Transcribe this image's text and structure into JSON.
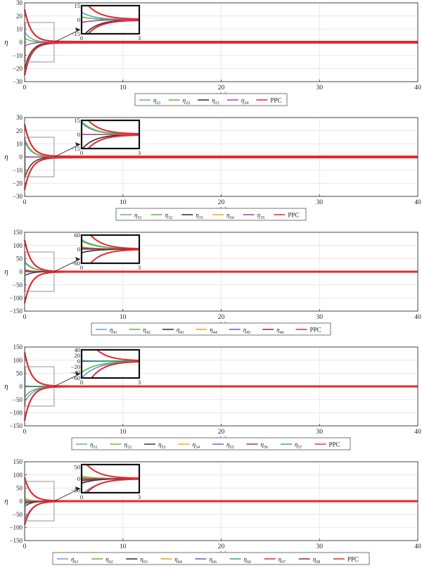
{
  "chart_data": [
    {
      "type": "line",
      "xlabel": "t (s)",
      "ylabel": "η",
      "xlim": [
        0,
        40
      ],
      "ylim": [
        -30,
        30
      ],
      "xticks": [
        "0",
        "10",
        "20",
        "30",
        "40"
      ],
      "yticks": [
        "30",
        "20",
        "10",
        "0",
        "−10",
        "−20",
        "−30"
      ],
      "grid": true,
      "inset": {
        "xticks": [
          "0",
          "3"
        ],
        "yticks": [
          "15",
          "0",
          "−15"
        ],
        "ylim": [
          -15,
          15
        ]
      },
      "ppc_bound": {
        "rho0": 25,
        "rho_inf": 0.5,
        "decay": 1.5
      },
      "legend": [
        {
          "label": "η",
          "sub": "21",
          "color": "#5b9bd5"
        },
        {
          "label": "η",
          "sub": "22",
          "color": "#5fb83a"
        },
        {
          "label": "η",
          "sub": "23",
          "color": "#2b2b2b"
        },
        {
          "label": "η",
          "sub": "24",
          "color": "#a04aa6"
        },
        {
          "label": "PPC",
          "sub": "",
          "color": "#e8282b"
        }
      ],
      "series": [
        {
          "sub": "21",
          "color": "#5b9bd5",
          "y0": 8,
          "decay": 1.5
        },
        {
          "sub": "22",
          "color": "#5fb83a",
          "y0": 3,
          "decay": 1.5
        },
        {
          "sub": "23",
          "color": "#2b2b2b",
          "y0": -20,
          "decay": 1.5
        },
        {
          "sub": "24",
          "color": "#a04aa6",
          "y0": -3,
          "decay": 1.5
        }
      ]
    },
    {
      "type": "line",
      "xlabel": "t (s)",
      "ylabel": "η",
      "xlim": [
        0,
        40
      ],
      "ylim": [
        -30,
        30
      ],
      "xticks": [
        "0",
        "10",
        "20",
        "30",
        "40"
      ],
      "yticks": [
        "30",
        "20",
        "10",
        "0",
        "−10",
        "−20",
        "−30"
      ],
      "grid": true,
      "inset": {
        "xticks": [
          "0",
          "3"
        ],
        "yticks": [
          "15",
          "0",
          "−15"
        ],
        "ylim": [
          -15,
          15
        ]
      },
      "ppc_bound": {
        "rho0": 25,
        "rho_inf": 0.5,
        "decay": 1.5
      },
      "legend": [
        {
          "label": "η",
          "sub": "31",
          "color": "#5b9bd5"
        },
        {
          "label": "η",
          "sub": "32",
          "color": "#5fb83a"
        },
        {
          "label": "η",
          "sub": "33",
          "color": "#2b2b2b"
        },
        {
          "label": "η",
          "sub": "34",
          "color": "#e8a317"
        },
        {
          "label": "η",
          "sub": "35",
          "color": "#a04aa6"
        },
        {
          "label": "PPC",
          "sub": "",
          "color": "#e8282b"
        }
      ],
      "series": [
        {
          "sub": "31",
          "color": "#5b9bd5",
          "y0": 12,
          "decay": 1.5
        },
        {
          "sub": "32",
          "color": "#5fb83a",
          "y0": 14,
          "decay": 1.5
        },
        {
          "sub": "33",
          "color": "#2b2b2b",
          "y0": -16,
          "decay": 1.5
        },
        {
          "sub": "34",
          "color": "#e8a317",
          "y0": 0,
          "decay": 1.5
        },
        {
          "sub": "35",
          "color": "#a04aa6",
          "y0": 0,
          "decay": 1.5
        }
      ]
    },
    {
      "type": "line",
      "xlabel": "t (s)",
      "ylabel": "η",
      "xlim": [
        0,
        40
      ],
      "ylim": [
        -150,
        150
      ],
      "xticks": [
        "0",
        "10",
        "20",
        "30",
        "40"
      ],
      "yticks": [
        "150",
        "100",
        "50",
        "0",
        "−50",
        "−100",
        "−150"
      ],
      "grid": true,
      "inset": {
        "xticks": [
          "0",
          "3"
        ],
        "yticks": [
          "60",
          "0",
          "−60"
        ],
        "ylim": [
          -60,
          60
        ]
      },
      "ppc_bound": {
        "rho0": 120,
        "rho_inf": 1,
        "decay": 1.5
      },
      "legend": [
        {
          "label": "η",
          "sub": "41",
          "color": "#5b9bd5"
        },
        {
          "label": "η",
          "sub": "42",
          "color": "#5fb83a"
        },
        {
          "label": "η",
          "sub": "43",
          "color": "#2b2b2b"
        },
        {
          "label": "η",
          "sub": "44",
          "color": "#e8a317"
        },
        {
          "label": "η",
          "sub": "45",
          "color": "#6a5acd"
        },
        {
          "label": "η",
          "sub": "46",
          "color": "#8b2f3a"
        },
        {
          "label": "PPC",
          "sub": "",
          "color": "#e8282b"
        }
      ],
      "series": [
        {
          "sub": "41",
          "color": "#5b9bd5",
          "y0": 40,
          "decay": 1.2
        },
        {
          "sub": "42",
          "color": "#5fb83a",
          "y0": 35,
          "decay": 1.2
        },
        {
          "sub": "43",
          "color": "#2b2b2b",
          "y0": -15,
          "decay": 1.5
        },
        {
          "sub": "44",
          "color": "#e8a317",
          "y0": 10,
          "decay": 1.5
        },
        {
          "sub": "45",
          "color": "#6a5acd",
          "y0": 0,
          "decay": 1.5
        },
        {
          "sub": "46",
          "color": "#8b2f3a",
          "y0": 5,
          "decay": 1.5
        }
      ]
    },
    {
      "type": "line",
      "xlabel": "t (s)",
      "ylabel": "η",
      "xlim": [
        0,
        40
      ],
      "ylim": [
        -150,
        150
      ],
      "xticks": [
        "0",
        "10",
        "20",
        "30",
        "40"
      ],
      "yticks": [
        "150",
        "100",
        "50",
        "0",
        "−50",
        "−100",
        "−150"
      ],
      "grid": true,
      "inset": {
        "xticks": [
          "0",
          "3"
        ],
        "yticks": [
          "40",
          "20",
          "0",
          "−20",
          "−40",
          "−60"
        ],
        "ylim": [
          -60,
          40
        ]
      },
      "ppc_bound": {
        "rho0": 130,
        "rho_inf": 1,
        "decay": 1.5
      },
      "legend": [
        {
          "label": "η",
          "sub": "51",
          "color": "#5b9bd5"
        },
        {
          "label": "η",
          "sub": "52",
          "color": "#5fb83a"
        },
        {
          "label": "η",
          "sub": "53",
          "color": "#2b2b2b"
        },
        {
          "label": "η",
          "sub": "54",
          "color": "#e8a317"
        },
        {
          "label": "η",
          "sub": "55",
          "color": "#6a5acd"
        },
        {
          "label": "η",
          "sub": "56",
          "color": "#8b2f3a"
        },
        {
          "label": "η",
          "sub": "57",
          "color": "#2ca58d"
        },
        {
          "label": "PPC",
          "sub": "",
          "color": "#e8282b"
        }
      ],
      "series": [
        {
          "sub": "51",
          "color": "#5b9bd5",
          "y0": -60,
          "decay": 1.2
        },
        {
          "sub": "52",
          "color": "#5fb83a",
          "y0": -40,
          "decay": 1.2
        },
        {
          "sub": "53",
          "color": "#2b2b2b",
          "y0": 0,
          "decay": 1.5
        },
        {
          "sub": "54",
          "color": "#e8a317",
          "y0": 0,
          "decay": 1.5
        },
        {
          "sub": "55",
          "color": "#6a5acd",
          "y0": 0,
          "decay": 1.5
        },
        {
          "sub": "56",
          "color": "#8b2f3a",
          "y0": 0,
          "decay": 1.5
        },
        {
          "sub": "57",
          "color": "#2ca58d",
          "y0": 2,
          "decay": 1.5
        }
      ]
    },
    {
      "type": "line",
      "xlabel": "t (s)",
      "ylabel": "η",
      "xlim": [
        0,
        40
      ],
      "ylim": [
        -150,
        150
      ],
      "xticks": [
        "0",
        "10",
        "20",
        "30",
        "40"
      ],
      "yticks": [
        "150",
        "100",
        "50",
        "0",
        "−50",
        "−100",
        "−150"
      ],
      "grid": true,
      "inset": {
        "xticks": [
          "0",
          "3"
        ],
        "yticks": [
          "50",
          "0",
          "−50"
        ],
        "ylim": [
          -60,
          60
        ]
      },
      "ppc_bound": {
        "rho0": 90,
        "rho_inf": 1,
        "decay": 1.5
      },
      "legend": [
        {
          "label": "η",
          "sub": "61",
          "color": "#5b9bd5"
        },
        {
          "label": "η",
          "sub": "62",
          "color": "#5fb83a"
        },
        {
          "label": "η",
          "sub": "63",
          "color": "#2b2b2b"
        },
        {
          "label": "η",
          "sub": "64",
          "color": "#e8a317"
        },
        {
          "label": "η",
          "sub": "66",
          "color": "#6a5acd"
        },
        {
          "label": "η",
          "sub": "66",
          "color": "#2ca58d"
        },
        {
          "label": "η",
          "sub": "67",
          "color": "#e8282b"
        },
        {
          "label": "η",
          "sub": "68",
          "color": "#8b2f3a"
        },
        {
          "label": "PPC",
          "sub": "",
          "color": "#e8282b"
        }
      ],
      "series": [
        {
          "sub": "61",
          "color": "#5b9bd5",
          "y0": -70,
          "decay": 1.2
        },
        {
          "sub": "62",
          "color": "#5fb83a",
          "y0": 10,
          "decay": 1.5
        },
        {
          "sub": "63",
          "color": "#2b2b2b",
          "y0": -20,
          "decay": 1.5
        },
        {
          "sub": "64",
          "color": "#e8a317",
          "y0": 5,
          "decay": 1.5
        },
        {
          "sub": "66",
          "color": "#6a5acd",
          "y0": 0,
          "decay": 1.5
        },
        {
          "sub": "66",
          "color": "#2ca58d",
          "y0": 0,
          "decay": 1.5
        },
        {
          "sub": "67",
          "color": "#e8282b",
          "y0": -5,
          "decay": 1.5
        },
        {
          "sub": "68",
          "color": "#8b2f3a",
          "y0": -10,
          "decay": 1.5
        }
      ]
    }
  ]
}
